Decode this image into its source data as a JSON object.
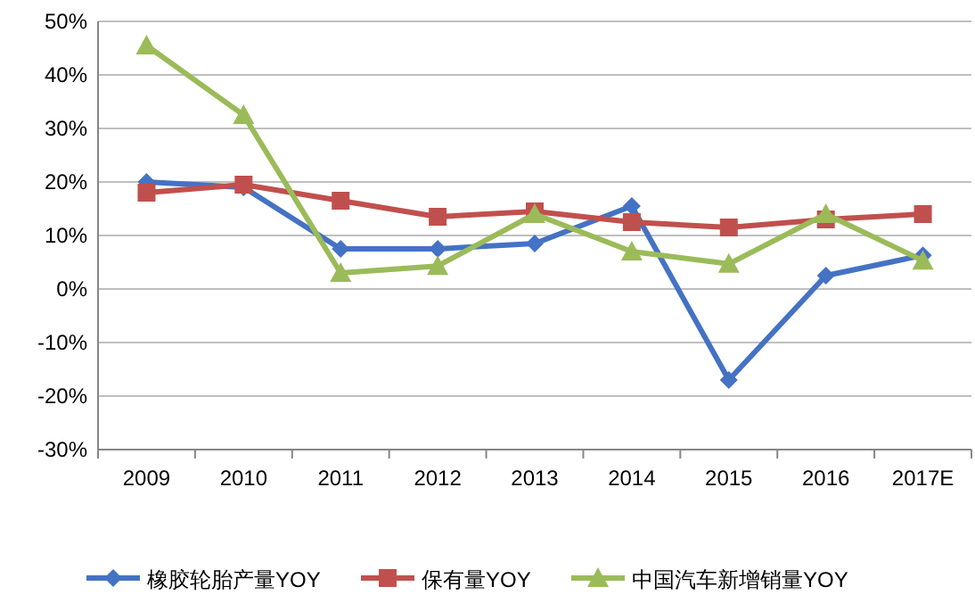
{
  "chart_data": {
    "type": "line",
    "categories": [
      "2009",
      "2010",
      "2011",
      "2012",
      "2013",
      "2014",
      "2015",
      "2016",
      "2017E"
    ],
    "series": [
      {
        "name": "橡胶轮胎产量YOY",
        "color": "#4472c4",
        "marker": "diamond",
        "values": [
          20,
          19,
          7.5,
          7.5,
          8.5,
          15.5,
          -17,
          2.5,
          6.3
        ]
      },
      {
        "name": "保有量YOY",
        "color": "#c0504d",
        "marker": "square",
        "values": [
          18,
          19.5,
          16.5,
          13.5,
          14.5,
          12.5,
          11.5,
          13,
          14
        ]
      },
      {
        "name": "中国汽车新增销量YOY",
        "color": "#9bbb59",
        "marker": "triangle",
        "values": [
          45.5,
          32.5,
          3,
          4.3,
          14,
          7,
          4.7,
          14,
          5.3
        ]
      }
    ],
    "ylim": [
      -30,
      50
    ],
    "yticks": [
      {
        "value": -30,
        "label": "-30%"
      },
      {
        "value": -20,
        "label": "-20%"
      },
      {
        "value": -10,
        "label": "-10%"
      },
      {
        "value": 0,
        "label": "0%"
      },
      {
        "value": 10,
        "label": "10%"
      },
      {
        "value": 20,
        "label": "20%"
      },
      {
        "value": 30,
        "label": "30%"
      },
      {
        "value": 40,
        "label": "40%"
      },
      {
        "value": 50,
        "label": "50%"
      }
    ],
    "grid": "y",
    "legend": "bottom",
    "line_style": "solid"
  }
}
